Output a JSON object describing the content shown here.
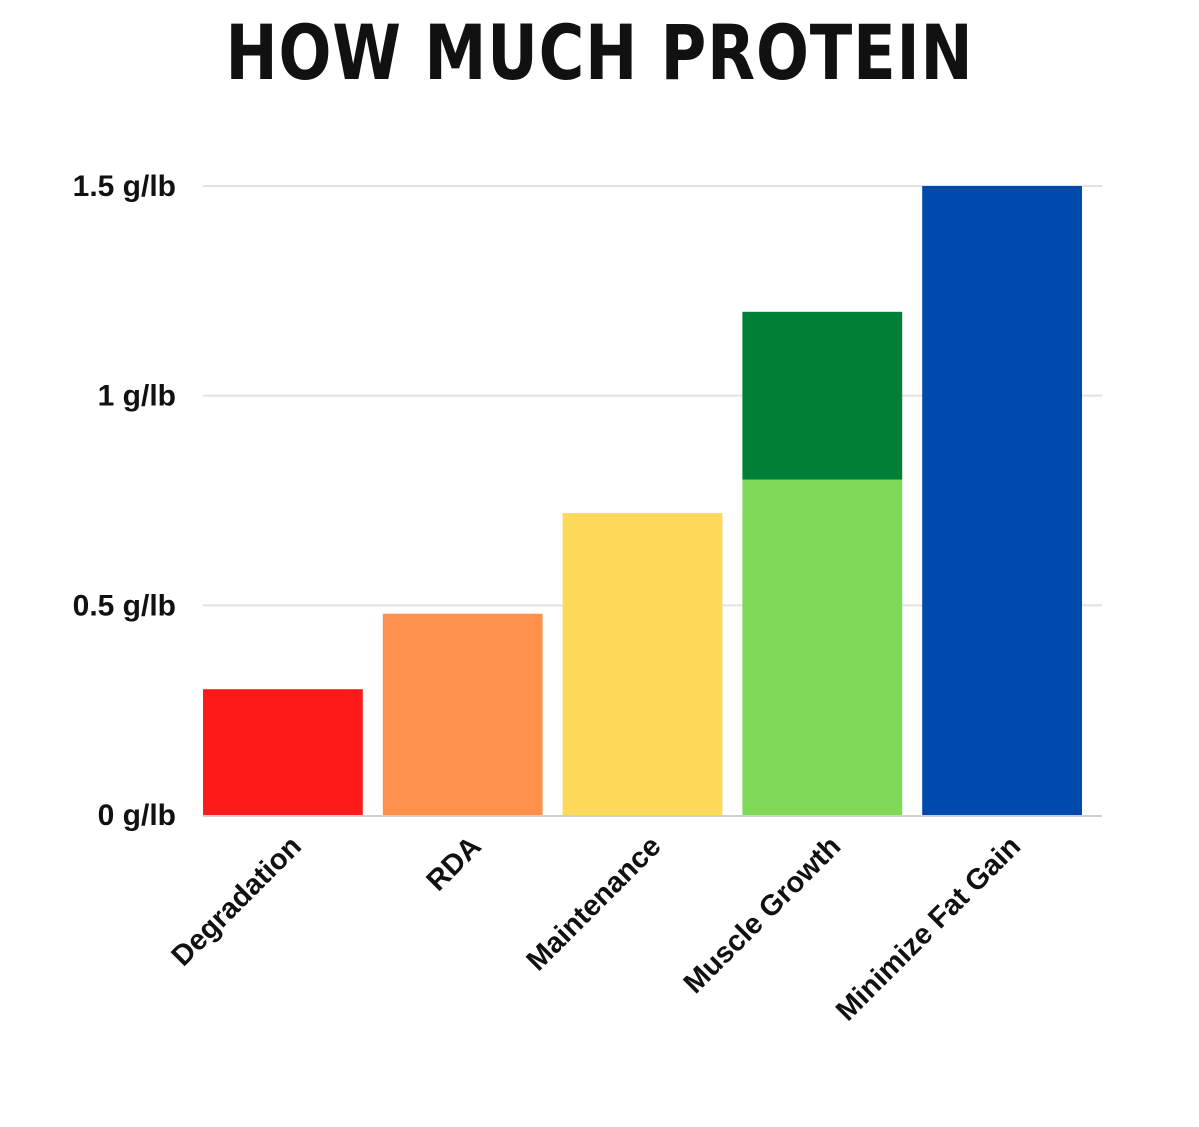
{
  "chart_data": {
    "type": "bar",
    "title": "HOW MUCH PROTEIN",
    "xlabel": "",
    "ylabel": "",
    "unit": "g/lb",
    "ylim": [
      0,
      1.5
    ],
    "yticks": [
      {
        "value": 0,
        "label": "0 g/lb"
      },
      {
        "value": 0.5,
        "label": "0.5 g/lb"
      },
      {
        "value": 1,
        "label": "1 g/lb"
      },
      {
        "value": 1.5,
        "label": "1.5 g/lb"
      }
    ],
    "grid": true,
    "legend": "none",
    "categories": [
      "Degradation",
      "RDA",
      "Maintenance",
      "Muscle Growth",
      "Minimize Fat Gain"
    ],
    "bars": [
      {
        "category": "Degradation",
        "segments": [
          {
            "from": 0,
            "to": 0.3,
            "color": "#ff1a1a"
          }
        ]
      },
      {
        "category": "RDA",
        "segments": [
          {
            "from": 0,
            "to": 0.48,
            "color": "#ff914d"
          }
        ]
      },
      {
        "category": "Maintenance",
        "segments": [
          {
            "from": 0,
            "to": 0.72,
            "color": "#ffd95a"
          }
        ]
      },
      {
        "category": "Muscle Growth",
        "segments": [
          {
            "from": 0,
            "to": 0.8,
            "color": "#7ed957"
          },
          {
            "from": 0.8,
            "to": 1.2,
            "color": "#008037"
          }
        ]
      },
      {
        "category": "Minimize Fat Gain",
        "segments": [
          {
            "from": 0,
            "to": 1.5,
            "color": "#004aad"
          }
        ]
      }
    ]
  }
}
